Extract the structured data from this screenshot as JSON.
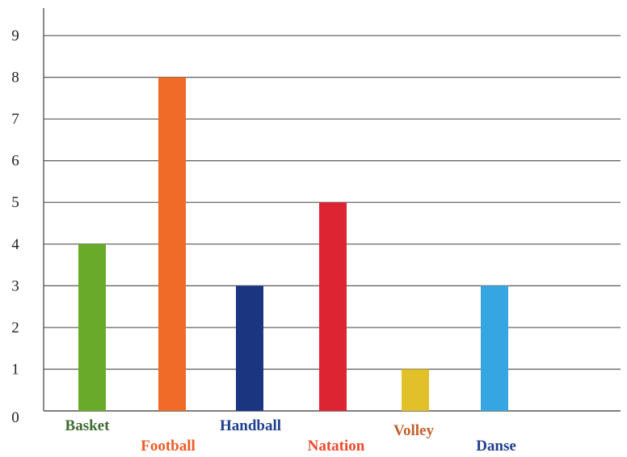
{
  "chart_data": {
    "type": "bar",
    "categories": [
      "Basket",
      "Football",
      "Handball",
      "Natation",
      "Volley",
      "Danse"
    ],
    "values": [
      4,
      8,
      3,
      5,
      1,
      3
    ],
    "bar_colors": [
      "#6aaa2a",
      "#f06a28",
      "#1b3580",
      "#dc2433",
      "#e2c02a",
      "#36a6e2"
    ],
    "label_colors": [
      "#3f6b30",
      "#ef5b26",
      "#1f3f8f",
      "#ee4a2a",
      "#c0602a",
      "#1f3f8f"
    ],
    "ylim": [
      0,
      9
    ],
    "yticks": [
      "0",
      "1",
      "2",
      "3",
      "4",
      "5",
      "6",
      "7",
      "8",
      "9"
    ],
    "grid": true,
    "axis_color": "#555555",
    "grid_color": "#666666"
  }
}
